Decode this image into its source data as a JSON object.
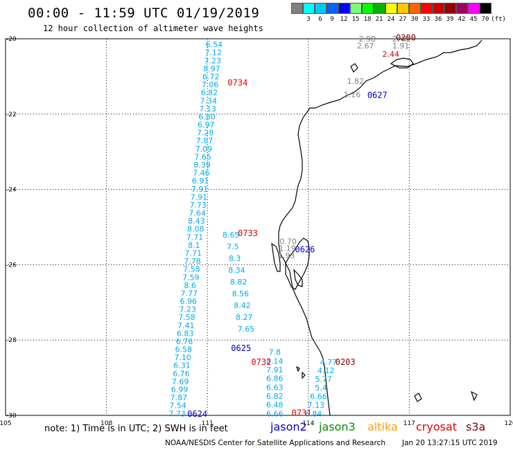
{
  "header": {
    "title": "00:00 - 11:59 UTC 01/19/2019",
    "subtitle": "12 hour collection of altimeter wave heights"
  },
  "legend": {
    "unit": "(ft)",
    "items": [
      {
        "label": "",
        "color": "#808080"
      },
      {
        "label": "3",
        "color": "#00ffff"
      },
      {
        "label": "6",
        "color": "#00c8ff"
      },
      {
        "label": "9",
        "color": "#0064ff"
      },
      {
        "label": "12",
        "color": "#0000ff"
      },
      {
        "label": "15",
        "color": "#78ff78"
      },
      {
        "label": "18",
        "color": "#00ff00"
      },
      {
        "label": "21",
        "color": "#00b400"
      },
      {
        "label": "24",
        "color": "#ffff00"
      },
      {
        "label": "27",
        "color": "#ffc800"
      },
      {
        "label": "30",
        "color": "#ff6400"
      },
      {
        "label": "33",
        "color": "#ff0000"
      },
      {
        "label": "36",
        "color": "#c80000"
      },
      {
        "label": "39",
        "color": "#960000"
      },
      {
        "label": "42",
        "color": "#a00060"
      },
      {
        "label": "45",
        "color": "#ff00ff"
      },
      {
        "label": "70",
        "color": "#000000"
      }
    ]
  },
  "map": {
    "lon_range": [
      105,
      120
    ],
    "lat_range": [
      -30,
      -20
    ],
    "x_ticks": [
      "105",
      "108",
      "111",
      "114",
      "117",
      "120"
    ],
    "y_ticks": [
      "-20",
      "-22",
      "-24",
      "-26",
      "-28",
      "-30"
    ]
  },
  "passes": [
    {
      "label": "0200",
      "color": "#800000",
      "lon": 116.9,
      "lat": -19.97
    },
    {
      "label": "0734",
      "color": "#e00000",
      "lon": 111.9,
      "lat": -21.17
    },
    {
      "label": "0627",
      "color": "#0000cc",
      "lon": 116.05,
      "lat": -21.5
    },
    {
      "label": "0733",
      "color": "#e00000",
      "lon": 112.2,
      "lat": -25.17
    },
    {
      "label": "0626",
      "color": "#0000cc",
      "lon": 113.9,
      "lat": -25.6
    },
    {
      "label": "0625",
      "color": "#0000cc",
      "lon": 112.0,
      "lat": -28.22
    },
    {
      "label": "0732",
      "color": "#e00000",
      "lon": 112.6,
      "lat": -28.58
    },
    {
      "label": "0203",
      "color": "#800000",
      "lon": 115.1,
      "lat": -28.58
    },
    {
      "label": "0624",
      "color": "#0000cc",
      "lon": 110.7,
      "lat": -29.96
    },
    {
      "label": "0731",
      "color": "#e00000",
      "lon": 113.8,
      "lat": -29.94
    }
  ],
  "wave_tracks": [
    {
      "name": "jason2-0624",
      "color": "#00aaee",
      "from": [
        111.2,
        -20.15
      ],
      "to": [
        110.1,
        -29.95
      ],
      "values": [
        "6.54",
        "7.12",
        "7.23",
        "8.97",
        "6.72",
        "7.06",
        "6.82",
        "7.34",
        "7.13",
        "6.80",
        "6.97",
        "7.28",
        "7.87",
        "7.09",
        "7.65",
        "8.39",
        "7.46",
        "6.91",
        "7.91",
        "7.91",
        "7.73",
        "7.64",
        "8.43",
        "8.08",
        "7.71",
        "8.1",
        "7.71",
        "7.78",
        "7.58",
        "7.59",
        "8.6",
        "7.77",
        "6.96",
        "7.23",
        "7.58",
        "7.41",
        "6.83",
        "6.76",
        "6.58",
        "7.10",
        "6.31",
        "6.76",
        "7.69",
        "6.99",
        "7.87",
        "7.54",
        "7.73"
      ]
    },
    {
      "name": "jason2-0625",
      "color": "#00aaee",
      "from": [
        112.15,
        -27.7
      ],
      "to": [
        111.7,
        -25.2
      ],
      "values": [
        "7.65",
        "8.27",
        "8.42",
        "8.56",
        "8.82",
        "8.34",
        "8.3",
        "7.5",
        "8.65"
      ]
    },
    {
      "name": "jason2-0626b",
      "color": "#00aaee",
      "from": [
        113.0,
        -28.32
      ],
      "to": [
        113.0,
        -29.95
      ],
      "values": [
        "7.8",
        "8.14",
        "7.91",
        "6.86",
        "6.63",
        "6.82",
        "6.48",
        "6.66"
      ]
    },
    {
      "name": "jason2-0627",
      "color": "#00aaee",
      "from": [
        114.6,
        -28.58
      ],
      "to": [
        114.15,
        -29.95
      ],
      "values": [
        "4.77",
        "4.12",
        "5.77",
        "5.4",
        "6.66",
        "7.13",
        "6.84"
      ]
    },
    {
      "name": "cryo-0200",
      "color": "#808080",
      "from": [
        115.75,
        -20.0
      ],
      "to": [
        115.7,
        -20.18
      ],
      "values": [
        "2.98",
        "2.67"
      ]
    },
    {
      "name": "cryo-0200b",
      "color": "#808080",
      "from": [
        116.75,
        -20.0
      ],
      "to": [
        116.75,
        -20.18
      ],
      "values": [
        "2.40",
        "1.91"
      ]
    },
    {
      "name": "cryo-0627",
      "color": "#808080",
      "from": [
        115.4,
        -21.12
      ],
      "to": [
        115.3,
        -21.48
      ],
      "values": [
        "1.82",
        "1.16"
      ]
    },
    {
      "name": "cryo-0626",
      "color": "#808080",
      "from": [
        113.4,
        -25.38
      ],
      "to": [
        113.35,
        -25.75
      ],
      "values": [
        "0.70",
        "1.19",
        "1.93"
      ]
    },
    {
      "name": "red-0200",
      "color": "#cc0000",
      "from": [
        116.45,
        -20.4
      ],
      "to": [
        116.6,
        -20.4
      ],
      "values": [
        "2.44"
      ]
    }
  ],
  "notes": {
    "note": "note: 1) Time is in UTC; 2) SWH is in feet",
    "satellites": [
      {
        "label": "jason2",
        "color": "#0000cc"
      },
      {
        "label": "jason3",
        "color": "#009000"
      },
      {
        "label": "altika",
        "color": "#ffa000"
      },
      {
        "label": "cryosat",
        "color": "#e00000"
      },
      {
        "label": "s3a",
        "color": "#800000"
      }
    ],
    "credit": "NOAA/NESDIS Center for Satellite Applications and Research",
    "stamp": "Jan 20 13:27:15 UTC 2019"
  }
}
